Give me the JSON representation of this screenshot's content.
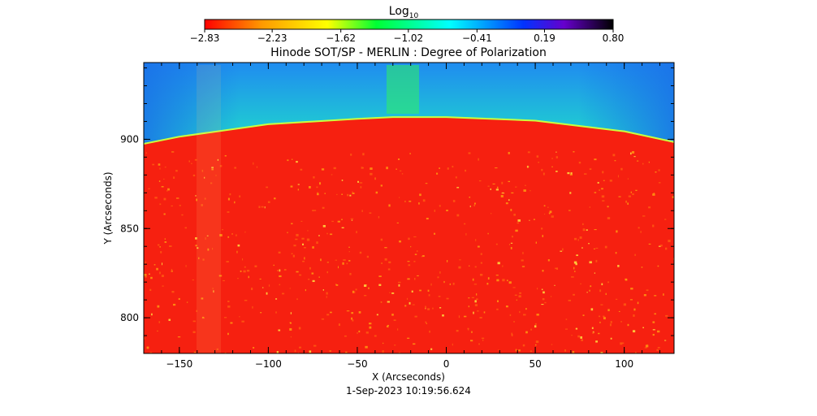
{
  "chart_data": {
    "type": "heatmap",
    "title": "Hinode SOT/SP - MERLIN : Degree of Polarization",
    "xlabel": "X (Arcseconds)",
    "ylabel": "Y (Arcseconds)",
    "date": "1-Sep-2023 10:19:56.624",
    "xlim": [
      -170,
      128
    ],
    "ylim": [
      780,
      943
    ],
    "x_ticks": [
      -150,
      -100,
      -50,
      0,
      50,
      100
    ],
    "y_ticks": [
      800,
      850,
      900
    ],
    "x_tick_labels": [
      "−150",
      "−100",
      "−50",
      "0",
      "50",
      "100"
    ],
    "y_tick_labels": [
      "800",
      "850",
      "900"
    ],
    "colorbar": {
      "label_base": "Log",
      "label_sub": "10",
      "ticks": [
        -2.83,
        -2.23,
        -1.62,
        -1.02,
        -0.41,
        0.19,
        0.8
      ],
      "tick_labels": [
        "−2.83",
        "−2.23",
        "−1.62",
        "−1.02",
        "−0.41",
        "0.19",
        "0.80"
      ],
      "colors": [
        "#ff0000",
        "#ff9900",
        "#ffff00",
        "#00ff33",
        "#00ffff",
        "#0033ff",
        "#6600cc",
        "#000000"
      ]
    },
    "limb": {
      "x": [
        -170,
        -150,
        -100,
        -50,
        -30,
        0,
        50,
        100,
        128
      ],
      "y": [
        897,
        901,
        908,
        911,
        912,
        912,
        910,
        904,
        898
      ]
    },
    "regions": [
      {
        "name": "off-limb",
        "log_value_range": [
          -1.2,
          -0.4
        ]
      },
      {
        "name": "disk",
        "log_value_range": [
          -2.83,
          -2.2
        ]
      }
    ],
    "colors": {
      "disk": "#f62010",
      "limb_band": "#22ff30",
      "off_limb": "#12e890",
      "sky_top": "#2a9cf0"
    }
  }
}
